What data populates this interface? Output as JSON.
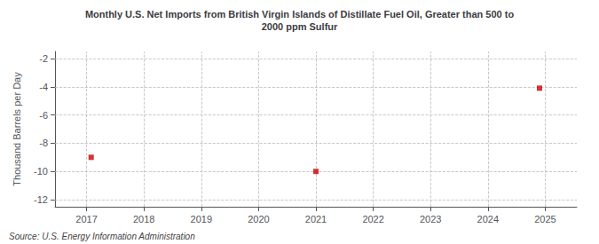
{
  "chart_data": {
    "type": "scatter",
    "title": "Monthly U.S. Net Imports from British Virgin Islands of Distillate Fuel Oil, Greater than 500 to\n2000 ppm Sulfur",
    "ylabel": "Thousand Barrels per Day",
    "annotations": [
      "Source: U.S. Energy Information Administration"
    ],
    "x": [
      2017.08,
      2021.0,
      2024.9
    ],
    "values": [
      -9.0,
      -10.0,
      -4.1
    ],
    "color": "#cc0000",
    "marker": "square",
    "xlim": [
      2016.45,
      2025.55
    ],
    "xticks": [
      2017,
      2018,
      2019,
      2020,
      2021,
      2022,
      2023,
      2024,
      2025
    ],
    "ylim": [
      -12.5,
      -1.5
    ],
    "yticks": [
      -12,
      -10,
      -8,
      -6,
      -4,
      -2
    ],
    "grid": true
  }
}
